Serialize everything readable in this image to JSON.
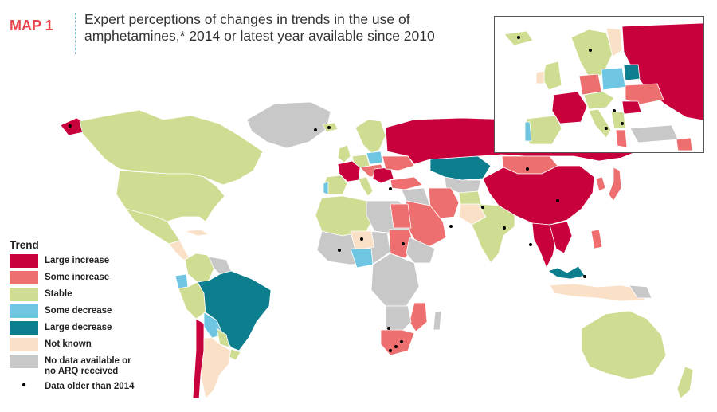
{
  "header": {
    "map_label": "MAP 1",
    "title": "Expert perceptions of changes in trends in the use of amphetamines,* 2014 or latest year available since 2010"
  },
  "colors": {
    "large_increase": "#c8003c",
    "some_increase": "#ee6f6f",
    "stable": "#cedd92",
    "some_decrease": "#6fc6e2",
    "large_decrease": "#0d7e8e",
    "not_known": "#fbe0c8",
    "no_data": "#c8c8c8",
    "title_accent": "#e8454c"
  },
  "legend": {
    "title": "Trend",
    "items": [
      {
        "key": "large_increase",
        "label": "Large increase"
      },
      {
        "key": "some_increase",
        "label": "Some increase"
      },
      {
        "key": "stable",
        "label": "Stable"
      },
      {
        "key": "some_decrease",
        "label": "Some decrease"
      },
      {
        "key": "large_decrease",
        "label": "Large decrease"
      },
      {
        "key": "not_known",
        "label": "Not known"
      },
      {
        "key": "no_data",
        "label": "No data available or no ARQ received"
      }
    ],
    "dot_label": "Data older than 2014"
  }
}
